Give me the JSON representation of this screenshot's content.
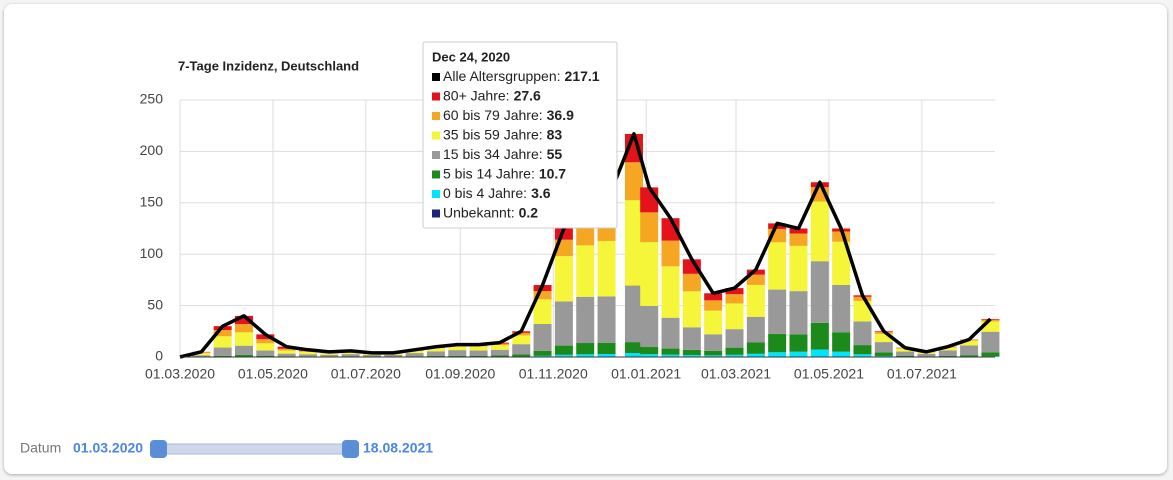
{
  "chart_data": {
    "type": "stacked-bar",
    "title": "7-Tage Inzidenz, Deutschland",
    "x": [
      "2020-03-01",
      "2020-03-15",
      "2020-03-29",
      "2020-04-12",
      "2020-04-26",
      "2020-05-10",
      "2020-05-24",
      "2020-06-07",
      "2020-06-21",
      "2020-07-05",
      "2020-07-19",
      "2020-08-02",
      "2020-08-16",
      "2020-08-30",
      "2020-09-13",
      "2020-09-27",
      "2020-10-11",
      "2020-10-25",
      "2020-11-08",
      "2020-11-22",
      "2020-12-06",
      "2020-12-24",
      "2021-01-03",
      "2021-01-17",
      "2021-01-31",
      "2021-02-14",
      "2021-02-28",
      "2021-03-14",
      "2021-03-28",
      "2021-04-11",
      "2021-04-25",
      "2021-05-09",
      "2021-05-23",
      "2021-06-06",
      "2021-06-20",
      "2021-07-04",
      "2021-07-18",
      "2021-08-01",
      "2021-08-15"
    ],
    "xlim": [
      "2020-03-01",
      "2021-08-18"
    ],
    "xticks": [
      {
        "value": "2020-03-01",
        "label": "01.03.2020"
      },
      {
        "value": "2020-05-01",
        "label": "01.05.2020"
      },
      {
        "value": "2020-07-01",
        "label": "01.07.2020"
      },
      {
        "value": "2020-09-01",
        "label": "01.09.2020"
      },
      {
        "value": "2020-11-01",
        "label": "01.11.2020"
      },
      {
        "value": "2021-01-01",
        "label": "01.01.2021"
      },
      {
        "value": "2021-03-01",
        "label": "01.03.2021"
      },
      {
        "value": "2021-05-01",
        "label": "01.05.2021"
      },
      {
        "value": "2021-07-01",
        "label": "01.07.2021"
      }
    ],
    "ylim": [
      0,
      250
    ],
    "yticks": [
      0,
      50,
      100,
      150,
      200,
      250
    ],
    "grid": true,
    "series": [
      {
        "name": "Unbekannt",
        "color": "#1a237e",
        "values": [
          0,
          0,
          0,
          0,
          0,
          0,
          0,
          0,
          0,
          0,
          0,
          0,
          0,
          0,
          0,
          0,
          0,
          0.1,
          0.1,
          0.1,
          0.1,
          0.2,
          0.2,
          0.2,
          0.1,
          0.1,
          0.1,
          0.1,
          0.1,
          0.1,
          0.2,
          0.1,
          0.1,
          0,
          0,
          0,
          0,
          0,
          0
        ]
      },
      {
        "name": "0 bis 4 Jahre",
        "color": "#00e5ff",
        "values": [
          0,
          0,
          0.2,
          0.5,
          0.3,
          0.2,
          0.2,
          0.2,
          0.2,
          0.1,
          0.1,
          0.2,
          0.2,
          0.2,
          0.3,
          0.3,
          0.5,
          1,
          2,
          2.5,
          2.8,
          3.6,
          2.5,
          2,
          1.8,
          1.5,
          2,
          3,
          4.5,
          5,
          7,
          5,
          2.5,
          1,
          0.3,
          0.1,
          0.2,
          0.3,
          0.6
        ]
      },
      {
        "name": "5 bis 14 Jahre",
        "color": "#1b8a1b",
        "values": [
          0,
          0.2,
          1,
          1.5,
          1,
          0.6,
          0.5,
          0.4,
          0.6,
          0.3,
          0.4,
          0.6,
          0.8,
          1,
          1,
          1.2,
          2,
          5,
          9,
          11,
          11,
          10.7,
          7,
          6,
          5,
          4.5,
          7,
          11,
          18,
          17,
          26,
          19,
          9,
          3.5,
          1,
          0.4,
          0.8,
          1.5,
          4
        ]
      },
      {
        "name": "15 bis 34 Jahre",
        "color": "#999999",
        "values": [
          0,
          1.5,
          8,
          9,
          5,
          2.5,
          2,
          1.6,
          2,
          1.5,
          1.6,
          3,
          4.5,
          5.5,
          5,
          5.5,
          10,
          26,
          43,
          45,
          45,
          55,
          40,
          30,
          22,
          16,
          18,
          25,
          43,
          42,
          60,
          46,
          23,
          10,
          4,
          2.6,
          5.5,
          9.5,
          20
        ]
      },
      {
        "name": "35 bis 59 Jahre",
        "color": "#f5f53a",
        "values": [
          0,
          2,
          11,
          13,
          7,
          3,
          2.3,
          1.7,
          2,
          1.3,
          1.2,
          2.2,
          3.2,
          3.8,
          4,
          4.7,
          8.5,
          24,
          44,
          50,
          54,
          83,
          62,
          50,
          35,
          23,
          25,
          31,
          46,
          44,
          58,
          42,
          20,
          8,
          2.8,
          1.5,
          2.8,
          4.6,
          10
        ]
      },
      {
        "name": "60 bis 79 Jahre",
        "color": "#f5a623",
        "values": [
          0,
          1,
          6,
          8,
          4,
          1.7,
          1,
          0.6,
          0.7,
          0.5,
          0.4,
          0.6,
          0.8,
          0.9,
          1,
          1.3,
          2.5,
          8,
          16,
          19,
          23,
          36.9,
          29,
          25,
          17,
          10,
          9,
          10,
          13,
          12,
          14,
          10,
          4,
          1.8,
          0.6,
          0.3,
          0.5,
          0.8,
          1.7
        ]
      },
      {
        "name": "80+ Jahre",
        "color": "#e3121b",
        "values": [
          0,
          0.3,
          3.8,
          8,
          4.7,
          2,
          1,
          0.5,
          0.5,
          0.3,
          0.3,
          0.4,
          0.5,
          0.6,
          0.7,
          1,
          1.5,
          5.9,
          10.9,
          12.4,
          14.1,
          27.6,
          24.3,
          21.8,
          14.1,
          6.9,
          5.9,
          4.9,
          5.4,
          4.9,
          4.8,
          2.9,
          1.4,
          0.7,
          0.3,
          0.1,
          0.2,
          0.3,
          0.7
        ]
      },
      {
        "name": "Alle Altersgruppen",
        "color": "#000000",
        "kind": "line",
        "values": [
          0,
          5,
          30,
          40,
          22,
          10,
          7,
          5,
          6,
          4,
          4,
          7,
          10,
          12,
          12,
          14,
          25,
          70,
          125,
          140,
          150,
          217.1,
          165,
          135,
          95,
          62,
          67,
          85,
          130,
          125,
          170,
          125,
          60,
          25,
          9,
          5,
          10,
          17,
          37
        ]
      }
    ],
    "tooltip": {
      "title": "Dec 24, 2020",
      "rows": [
        {
          "label": "Alle Altersgruppen:",
          "value": 217.1,
          "color": "#000000"
        },
        {
          "label": "80+ Jahre:",
          "value": 27.6,
          "color": "#e3121b"
        },
        {
          "label": "60 bis 79 Jahre:",
          "value": 36.9,
          "color": "#f5a623"
        },
        {
          "label": "35 bis 59 Jahre:",
          "value": 83,
          "color": "#f5f53a"
        },
        {
          "label": "15 bis 34 Jahre:",
          "value": 55,
          "color": "#999999"
        },
        {
          "label": "5 bis 14 Jahre:",
          "value": 10.7,
          "color": "#1b8a1b"
        },
        {
          "label": "0 bis 4 Jahre:",
          "value": 3.6,
          "color": "#00e5ff"
        },
        {
          "label": "Unbekannt:",
          "value": 0.2,
          "color": "#1a237e"
        }
      ]
    },
    "slider": {
      "label": "Datum",
      "from": "01.03.2020",
      "to": "18.08.2021"
    }
  }
}
